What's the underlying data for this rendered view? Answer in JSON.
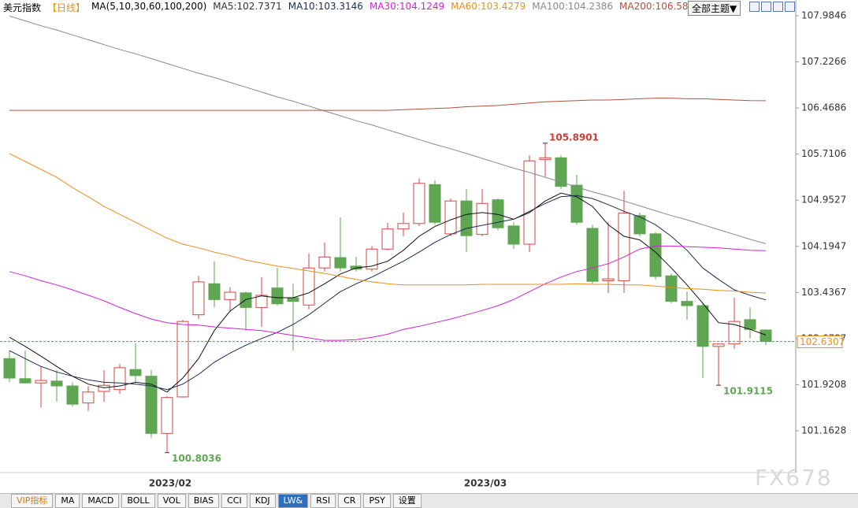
{
  "chart_data": {
    "type": "candlestick",
    "title": "美元指数",
    "period": "【日线】",
    "ma_label": "MA(5,10,30,60,100,200)",
    "categories": [
      null,
      null,
      null,
      null,
      null,
      null,
      null,
      null,
      null,
      null,
      "2023/02",
      null,
      null,
      null,
      null,
      null,
      null,
      null,
      null,
      null,
      null,
      null,
      null,
      null,
      null,
      null,
      null,
      null,
      null,
      null,
      "2023/03",
      null,
      null,
      null,
      null,
      null,
      null,
      null,
      null,
      null,
      null,
      null,
      null,
      null,
      null,
      null,
      null,
      null,
      null
    ],
    "open": [
      102.35,
      102.02,
      101.95,
      101.98,
      101.9,
      101.62,
      101.81,
      101.84,
      102.17,
      102.06,
      101.12,
      101.72,
      103.07,
      103.58,
      103.32,
      103.43,
      103.19,
      103.51,
      103.35,
      103.23,
      103.84,
      104.01,
      103.87,
      103.82,
      104.15,
      104.48,
      104.57,
      105.21,
      104.4,
      104.94,
      104.39,
      104.96,
      104.53,
      104.23,
      105.62,
      105.65,
      105.2,
      104.49,
      103.63,
      103.63,
      104.7,
      104.4,
      103.71,
      103.29,
      103.22,
      102.55,
      102.59,
      102.99,
      102.82
    ],
    "high": [
      102.48,
      102.48,
      102.22,
      102.16,
      101.96,
      101.9,
      102.16,
      102.26,
      102.6,
      102.16,
      101.73,
      102.99,
      103.71,
      103.95,
      103.52,
      103.45,
      103.69,
      103.84,
      103.58,
      104.08,
      104.26,
      104.67,
      104.02,
      104.2,
      104.58,
      104.75,
      105.31,
      105.28,
      104.98,
      105.14,
      105.14,
      104.98,
      104.59,
      105.69,
      105.8901,
      105.69,
      105.37,
      104.55,
      104.59,
      105.11,
      104.75,
      104.43,
      103.75,
      103.45,
      103.26,
      102.6,
      103.35,
      103.19,
      102.83
    ],
    "low": [
      101.96,
      101.94,
      101.55,
      101.64,
      101.56,
      101.49,
      101.64,
      101.77,
      101.95,
      101.05,
      100.8036,
      101.71,
      103.0,
      103.19,
      103.13,
      102.81,
      102.87,
      103.22,
      102.48,
      103.16,
      103.78,
      103.78,
      103.78,
      103.78,
      104.13,
      104.36,
      104.53,
      104.55,
      104.36,
      104.1,
      104.36,
      104.46,
      104.15,
      104.1,
      105.34,
      105.14,
      104.55,
      103.58,
      103.43,
      103.43,
      104.36,
      103.65,
      103.26,
      102.99,
      102.03,
      101.9115,
      102.51,
      102.68,
      102.57
    ],
    "close": [
      102.03,
      101.95,
      101.99,
      101.9,
      101.6,
      101.8,
      101.91,
      102.2,
      102.07,
      101.12,
      101.71,
      102.96,
      103.61,
      103.32,
      103.44,
      103.19,
      103.39,
      103.25,
      103.29,
      103.84,
      104.02,
      103.84,
      103.82,
      104.15,
      104.48,
      104.57,
      105.23,
      104.59,
      104.94,
      104.37,
      104.9,
      104.5,
      104.23,
      105.6,
      105.65,
      105.18,
      104.59,
      103.62,
      103.66,
      104.74,
      104.4,
      103.7,
      103.29,
      103.22,
      102.55,
      102.59,
      102.96,
      102.83,
      102.6307
    ],
    "up_color": "#d2453f",
    "down_color": "#5ea651",
    "series": [
      {
        "name": "MA5",
        "color": "#111111",
        "values": [
          102.7,
          102.55,
          102.39,
          102.22,
          102.06,
          101.93,
          101.87,
          101.9,
          101.96,
          101.93,
          101.8,
          102.03,
          102.35,
          102.81,
          103.13,
          103.32,
          103.38,
          103.35,
          103.35,
          103.43,
          103.58,
          103.74,
          103.84,
          103.87,
          103.95,
          104.13,
          104.36,
          104.52,
          104.63,
          104.72,
          104.75,
          104.72,
          104.64,
          104.75,
          104.94,
          105.07,
          105.01,
          104.85,
          104.55,
          104.36,
          104.3,
          104.1,
          103.84,
          103.56,
          103.26,
          102.94,
          102.91,
          102.83,
          102.7371
        ]
      },
      {
        "name": "MA10",
        "color": "#1c2a55",
        "values": [
          102.48,
          102.35,
          102.22,
          102.13,
          102.06,
          102.0,
          101.96,
          101.95,
          101.93,
          101.9,
          101.84,
          101.93,
          102.09,
          102.29,
          102.44,
          102.57,
          102.68,
          102.78,
          102.91,
          103.07,
          103.26,
          103.45,
          103.58,
          103.69,
          103.82,
          103.95,
          104.1,
          104.26,
          104.39,
          104.49,
          104.54,
          104.59,
          104.64,
          104.77,
          104.9,
          105.01,
          105.03,
          104.98,
          104.88,
          104.77,
          104.68,
          104.55,
          104.36,
          104.13,
          103.84,
          103.65,
          103.48,
          103.39,
          103.3146
        ]
      },
      {
        "name": "MA30",
        "color": "#d321d3",
        "values": [
          103.78,
          103.71,
          103.63,
          103.56,
          103.48,
          103.39,
          103.3,
          103.19,
          103.09,
          103.0,
          102.94,
          102.91,
          102.9,
          102.87,
          102.85,
          102.83,
          102.81,
          102.77,
          102.73,
          102.69,
          102.65,
          102.65,
          102.66,
          102.7,
          102.75,
          102.83,
          102.88,
          102.94,
          103.0,
          103.07,
          103.14,
          103.22,
          103.32,
          103.45,
          103.58,
          103.69,
          103.78,
          103.84,
          103.91,
          104.02,
          104.15,
          104.2,
          104.2,
          104.19,
          104.18,
          104.17,
          104.15,
          104.13,
          104.1249
        ]
      },
      {
        "name": "MA60",
        "color": "#e5901c",
        "values": [
          105.72,
          105.59,
          105.46,
          105.33,
          105.16,
          105.01,
          104.85,
          104.72,
          104.59,
          104.46,
          104.33,
          104.23,
          104.17,
          104.1,
          104.04,
          103.97,
          103.92,
          103.87,
          103.83,
          103.79,
          103.75,
          103.7,
          103.65,
          103.61,
          103.58,
          103.56,
          103.56,
          103.56,
          103.56,
          103.56,
          103.57,
          103.57,
          103.57,
          103.57,
          103.57,
          103.57,
          103.58,
          103.57,
          103.57,
          103.56,
          103.56,
          103.54,
          103.52,
          103.5,
          103.49,
          103.47,
          103.46,
          103.44,
          103.4279
        ]
      },
      {
        "name": "MA100",
        "color": "#8a8a8a",
        "values": [
          107.98,
          107.9,
          107.82,
          107.75,
          107.67,
          107.59,
          107.51,
          107.43,
          107.36,
          107.28,
          107.2,
          107.12,
          107.04,
          106.97,
          106.89,
          106.81,
          106.73,
          106.65,
          106.58,
          106.5,
          106.42,
          106.34,
          106.26,
          106.19,
          106.11,
          106.03,
          105.95,
          105.87,
          105.8,
          105.72,
          105.64,
          105.56,
          105.48,
          105.41,
          105.33,
          105.25,
          105.17,
          105.09,
          105.02,
          104.94,
          104.86,
          104.78,
          104.7,
          104.63,
          104.55,
          104.47,
          104.39,
          104.31,
          104.2386
        ]
      },
      {
        "name": "MA200",
        "color": "#b0503e",
        "values": [
          106.43,
          106.43,
          106.43,
          106.43,
          106.43,
          106.43,
          106.43,
          106.43,
          106.43,
          106.43,
          106.43,
          106.43,
          106.43,
          106.43,
          106.43,
          106.43,
          106.43,
          106.43,
          106.43,
          106.43,
          106.43,
          106.43,
          106.43,
          106.43,
          106.43,
          106.44,
          106.45,
          106.46,
          106.47,
          106.49,
          106.5,
          106.51,
          106.53,
          106.55,
          106.57,
          106.58,
          106.59,
          106.6,
          106.6,
          106.61,
          106.62,
          106.63,
          106.63,
          106.62,
          106.62,
          106.61,
          106.6,
          106.59,
          106.588
        ]
      }
    ],
    "ylim": [
      100.4765,
      108.2435
    ],
    "yticks": [
      107.9846,
      107.2266,
      106.4686,
      105.7106,
      104.9527,
      104.1947,
      103.4367,
      102.6787,
      101.9208,
      101.1628
    ],
    "marked_high": 34,
    "marked_lows": [
      10,
      45
    ]
  },
  "ui": {
    "theme_button": "全部主题▼",
    "watermark": "FX678",
    "tabs": [
      "VIP指标",
      "MA",
      "MACD",
      "BOLL",
      "VOL",
      "BIAS",
      "CCI",
      "KDJ",
      "LW&",
      "RSI",
      "CR",
      "PSY",
      "设置"
    ],
    "active_tab": 8
  }
}
